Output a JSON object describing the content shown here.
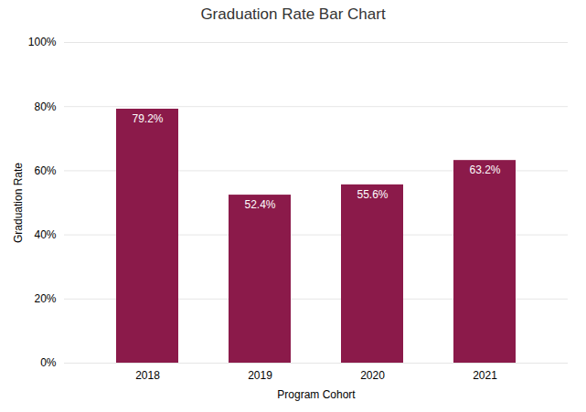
{
  "chart_data": {
    "type": "bar",
    "title": "Graduation Rate Bar Chart",
    "xlabel": "Program Cohort",
    "ylabel": "Graduation Rate",
    "categories": [
      "2018",
      "2019",
      "2020",
      "2021"
    ],
    "values": [
      79.2,
      52.4,
      55.6,
      63.2
    ],
    "value_labels": [
      "79.2%",
      "52.4%",
      "55.6%",
      "63.2%"
    ],
    "data_labels": true,
    "color": "#8B1A4A",
    "ylim": [
      0,
      100
    ],
    "yticks": [
      {
        "value": 0,
        "label": "0%"
      },
      {
        "value": 20,
        "label": "20%"
      },
      {
        "value": 40,
        "label": "40%"
      },
      {
        "value": 60,
        "label": "60%"
      },
      {
        "value": 80,
        "label": "80%"
      },
      {
        "value": 100,
        "label": "100%"
      }
    ],
    "grid": true
  }
}
